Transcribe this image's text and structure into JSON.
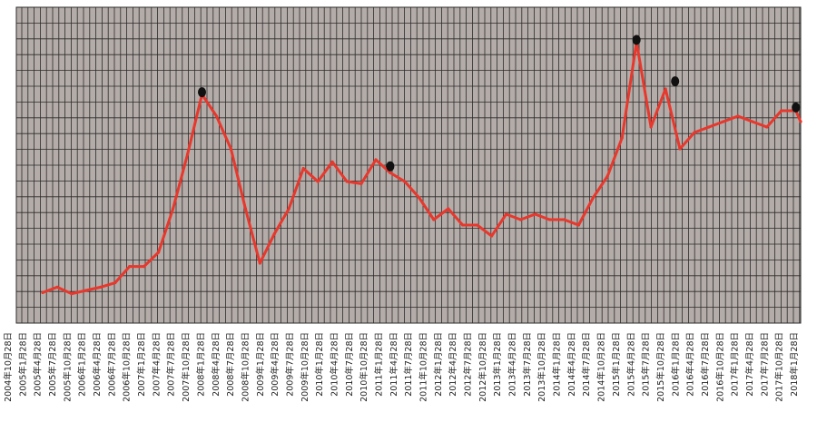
{
  "chart_data": {
    "type": "line",
    "title": "",
    "xlabel": "",
    "ylabel": "",
    "grid": true,
    "colors": {
      "plot_bg": "#b4aca8",
      "grid": "#2b2b2b",
      "line": "#e8372c",
      "marker": "#111111"
    },
    "x_tick_labels": [
      "2004年10月28日",
      "2005年1月28日",
      "2005年4月28日",
      "2005年7月28日",
      "2005年10月28日",
      "2006年1月28日",
      "2006年4月28日",
      "2006年7月28日",
      "2006年10月28日",
      "2007年1月28日",
      "2007年4月28日",
      "2007年7月28日",
      "2007年10月28日",
      "2008年1月28日",
      "2008年4月28日",
      "2008年7月28日",
      "2008年10月28日",
      "2009年1月28日",
      "2009年4月28日",
      "2009年7月28日",
      "2009年10月28日",
      "2010年1月28日",
      "2010年4月28日",
      "2010年7月28日",
      "2010年10月28日",
      "2011年1月28日",
      "2011年4月28日",
      "2011年7月28日",
      "2011年10月28日",
      "2012年1月28日",
      "2012年4月28日",
      "2012年7月28日",
      "2012年10月28日",
      "2013年1月28日",
      "2013年4月28日",
      "2013年7月28日",
      "2013年10月28日",
      "2014年1月28日",
      "2014年4月28日",
      "2014年7月28日",
      "2014年10月28日",
      "2015年1月28日",
      "2015年4月28日",
      "2015年7月28日",
      "2015年10月28日",
      "2016年1月28日",
      "2016年4月28日",
      "2016年7月28日",
      "2016年10月28日",
      "2017年1月28日",
      "2017年4月28日",
      "2017年7月28日",
      "2017年10月28日",
      "2018年1月28日"
    ],
    "series": [
      {
        "x": [
          "2005-01",
          "2005-04",
          "2005-07",
          "2005-10",
          "2006-01",
          "2006-04",
          "2006-07",
          "2006-10",
          "2007-01",
          "2007-04",
          "2007-07",
          "2007-10",
          "2008-01",
          "2008-04",
          "2008-07",
          "2008-10",
          "2009-01",
          "2009-04",
          "2009-07",
          "2009-10",
          "2010-01",
          "2010-04",
          "2010-07",
          "2010-10",
          "2011-01",
          "2011-04",
          "2011-07",
          "2011-10",
          "2012-01",
          "2012-04",
          "2012-07",
          "2012-10",
          "2013-01",
          "2013-04",
          "2013-07",
          "2013-10",
          "2014-01",
          "2014-04",
          "2014-07",
          "2014-10",
          "2015-01",
          "2015-04",
          "2015-07",
          "2015-10",
          "2016-01",
          "2016-04",
          "2016-07",
          "2016-10",
          "2017-01",
          "2017-04",
          "2017-07",
          "2017-10",
          "2018-01",
          "2018-02"
        ],
        "values": [
          0.28,
          0.33,
          0.27,
          0.3,
          0.33,
          0.37,
          0.52,
          0.52,
          0.65,
          1.05,
          1.55,
          2.1,
          1.9,
          1.6,
          1.05,
          0.55,
          0.82,
          1.05,
          1.42,
          1.3,
          1.48,
          1.3,
          1.28,
          1.5,
          1.38,
          1.3,
          1.15,
          0.95,
          1.05,
          0.9,
          0.9,
          0.8,
          1.0,
          0.95,
          1.0,
          0.95,
          0.95,
          0.9,
          1.15,
          1.35,
          1.7,
          2.58,
          1.8,
          2.15,
          1.6,
          1.75,
          1.8,
          1.85,
          1.9,
          1.85,
          1.8,
          1.95,
          1.95,
          1.85
        ]
      }
    ],
    "highlight_points": [
      {
        "x": "2007-10",
        "y": 2.12
      },
      {
        "x": "2011-01",
        "y": 1.44
      },
      {
        "x": "2015-04",
        "y": 2.6
      },
      {
        "x": "2015-12",
        "y": 2.22
      },
      {
        "x": "2018-01",
        "y": 1.98
      }
    ],
    "ylim": [
      0,
      2.9
    ]
  }
}
